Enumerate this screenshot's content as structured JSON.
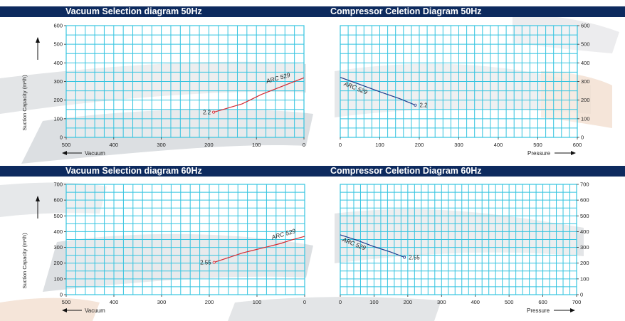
{
  "headers": {
    "top_left": "Vacuum Selection diagram 50Hz",
    "top_right": "Compressor Celetion Diagram 50Hz",
    "bottom_left": "Vacuum Selection diagram 60Hz",
    "bottom_right": "Compressor Celetion Diagram 60Hz"
  },
  "colors": {
    "header_bg": "#0d2a5e",
    "grid": "#35c4e0",
    "vacuum_series": "#d42a33",
    "pressure_series": "#1f3b8c",
    "brush": "#d9dcdf",
    "brush_accent": "#f3dfcf"
  },
  "chart_data": [
    {
      "id": "vac50",
      "type": "line",
      "title": "Vacuum Selection diagram 50Hz",
      "xlabel": "Vacuum",
      "ylabel": "Suction Capacity (m³/h)",
      "xlim": [
        500,
        0
      ],
      "ylim": [
        0,
        600
      ],
      "x_ticks": [
        500,
        400,
        300,
        200,
        100,
        0
      ],
      "y_ticks": [
        0,
        100,
        200,
        300,
        400,
        500,
        600
      ],
      "grid": true,
      "series": [
        {
          "name": "ARC 529",
          "x": [
            190,
            170,
            150,
            130,
            110,
            90,
            70,
            50,
            30,
            0
          ],
          "y": [
            135,
            150,
            165,
            180,
            205,
            230,
            250,
            270,
            290,
            320
          ]
        }
      ],
      "annotations": [
        {
          "text": "2.2",
          "x": 190,
          "y": 135
        },
        {
          "text": "ARC 529",
          "x": 60,
          "y": 290
        }
      ]
    },
    {
      "id": "comp50",
      "type": "line",
      "title": "Compressor Celetion Diagram 50Hz",
      "xlabel": "Pressure",
      "ylabel": "",
      "xlim": [
        0,
        600
      ],
      "ylim": [
        0,
        600
      ],
      "x_ticks": [
        0,
        100,
        200,
        300,
        400,
        500,
        600
      ],
      "y_ticks": [
        0,
        100,
        200,
        300,
        400,
        500,
        600
      ],
      "grid": true,
      "series": [
        {
          "name": "ARC 529",
          "x": [
            0,
            50,
            100,
            150,
            190
          ],
          "y": [
            322,
            284,
            245,
            208,
            173
          ]
        }
      ],
      "annotations": [
        {
          "text": "2.2",
          "x": 190,
          "y": 173
        },
        {
          "text": "ARC 529",
          "x": 30,
          "y": 280
        }
      ]
    },
    {
      "id": "vac60",
      "type": "line",
      "title": "Vacuum Selection diagram 60Hz",
      "xlabel": "Vacuum",
      "ylabel": "Suction Capacity (m³/h)",
      "xlim": [
        500,
        0
      ],
      "ylim": [
        0,
        700
      ],
      "x_ticks": [
        500,
        400,
        300,
        200,
        100,
        0
      ],
      "y_ticks": [
        0,
        100,
        200,
        300,
        400,
        500,
        600,
        700
      ],
      "grid": true,
      "series": [
        {
          "name": "ARC 529",
          "x": [
            190,
            170,
            150,
            130,
            110,
            90,
            70,
            50,
            30,
            0
          ],
          "y": [
            205,
            225,
            245,
            265,
            280,
            295,
            310,
            325,
            345,
            370
          ]
        }
      ],
      "annotations": [
        {
          "text": "2.55",
          "x": 190,
          "y": 205
        },
        {
          "text": "ARC 529",
          "x": 50,
          "y": 350
        }
      ]
    },
    {
      "id": "comp60",
      "type": "line",
      "title": "Compressor Celetion Diagram 60Hz",
      "xlabel": "Pressure",
      "ylabel": "",
      "xlim": [
        0,
        700
      ],
      "ylim": [
        0,
        700
      ],
      "x_ticks": [
        0,
        100,
        200,
        300,
        400,
        500,
        600,
        700
      ],
      "y_ticks": [
        0,
        100,
        200,
        300,
        400,
        500,
        600,
        700
      ],
      "grid": true,
      "series": [
        {
          "name": "ARC 529",
          "x": [
            0,
            50,
            100,
            150,
            190
          ],
          "y": [
            380,
            345,
            305,
            270,
            237
          ]
        }
      ],
      "annotations": [
        {
          "text": "2.55",
          "x": 190,
          "y": 237
        },
        {
          "text": "ARC 529",
          "x": 30,
          "y": 340
        }
      ]
    }
  ]
}
